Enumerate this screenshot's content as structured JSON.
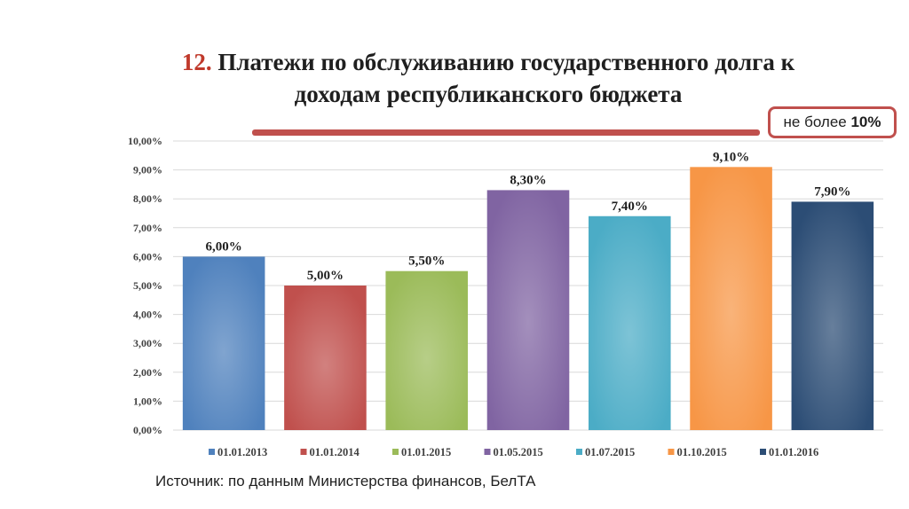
{
  "title": {
    "number": "12.",
    "line1": "Платежи по обслуживанию государственного долга к",
    "line2": "доходам республиканского бюджета"
  },
  "limit_label": {
    "prefix": "не более ",
    "value": "10%"
  },
  "source": "Источник: по данным Министерства финансов, БелТА",
  "chart_data": {
    "type": "bar",
    "categories": [
      "01.01.2013",
      "01.01.2014",
      "01.01.2015",
      "01.05.2015",
      "01.07.2015",
      "01.10.2015",
      "01.01.2016"
    ],
    "values": [
      6.0,
      5.0,
      5.5,
      8.3,
      7.4,
      9.1,
      7.9
    ],
    "value_labels": [
      "6,00%",
      "5,00%",
      "5,50%",
      "8,30%",
      "7,40%",
      "9,10%",
      "7,90%"
    ],
    "colors": [
      "#4f81bd",
      "#c0504d",
      "#9bbb59",
      "#8064a2",
      "#4bacc6",
      "#f79646",
      "#2c4d75"
    ],
    "label_colors": [
      "#1f1f1f",
      "#1f1f1f",
      "#1f1f1f",
      "#1f1f1f",
      "#1f1f1f",
      "#1f1f1f",
      "#1f1f1f"
    ],
    "yticks": [
      "0,00%",
      "1,00%",
      "2,00%",
      "3,00%",
      "4,00%",
      "5,00%",
      "6,00%",
      "7,00%",
      "8,00%",
      "9,00%",
      "10,00%"
    ],
    "ylim": [
      0,
      10
    ],
    "grid": true,
    "legend_position": "bottom",
    "title": "",
    "xlabel": "",
    "ylabel": ""
  }
}
